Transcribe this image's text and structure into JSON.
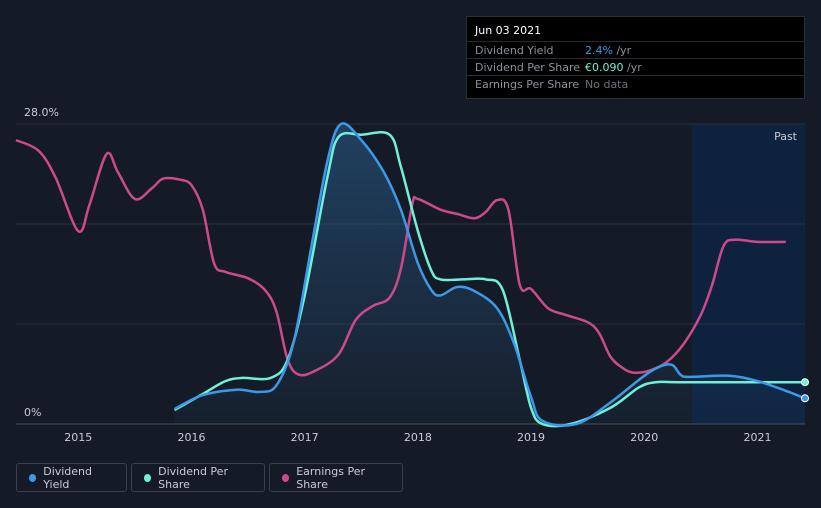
{
  "tooltip": {
    "date": "Jun 03 2021",
    "rows": [
      {
        "label": "Dividend Yield",
        "value": "2.4%",
        "unit": " /yr",
        "color": "#3b9ae8"
      },
      {
        "label": "Dividend Per Share",
        "value": "€0.090",
        "unit": " /yr",
        "color": "#6ff0d8"
      },
      {
        "label": "Earnings Per Share",
        "value": "No data",
        "unit": "",
        "color": "#6b7079"
      }
    ]
  },
  "past_label": "Past",
  "legend": [
    {
      "label": "Dividend Yield",
      "color": "#3b9ae8"
    },
    {
      "label": "Dividend Per Share",
      "color": "#6ff0d8"
    },
    {
      "label": "Earnings Per Share",
      "color": "#cc4a8c"
    }
  ],
  "chart_data": {
    "type": "line",
    "y_tick_labels": [
      "28.0%",
      "0%"
    ],
    "ylim": [
      0,
      28
    ],
    "xlim": [
      2014.45,
      2021.42
    ],
    "x_tick_labels": [
      "2015",
      "2016",
      "2017",
      "2018",
      "2019",
      "2020",
      "2021"
    ],
    "x_ticks": [
      2015,
      2016,
      2017,
      2018,
      2019,
      2020,
      2021
    ],
    "past_region_start": 2020.42,
    "grid": true,
    "series": [
      {
        "name": "Dividend Yield",
        "color": "#3b9ae8",
        "fill": true,
        "points": [
          [
            2015.85,
            1.4
          ],
          [
            2016.1,
            2.7
          ],
          [
            2016.4,
            3.2
          ],
          [
            2016.6,
            3.0
          ],
          [
            2016.75,
            3.6
          ],
          [
            2016.9,
            7.5
          ],
          [
            2017.05,
            16
          ],
          [
            2017.2,
            24.5
          ],
          [
            2017.32,
            28.0
          ],
          [
            2017.5,
            26.5
          ],
          [
            2017.7,
            23.5
          ],
          [
            2017.85,
            20
          ],
          [
            2018.0,
            15
          ],
          [
            2018.12,
            12.5
          ],
          [
            2018.2,
            12.0
          ],
          [
            2018.35,
            12.8
          ],
          [
            2018.5,
            12.4
          ],
          [
            2018.7,
            10.8
          ],
          [
            2018.85,
            7.5
          ],
          [
            2019.0,
            2.5
          ],
          [
            2019.1,
            0.3
          ],
          [
            2019.4,
            0
          ],
          [
            2019.7,
            2.0
          ],
          [
            2020.0,
            4.5
          ],
          [
            2020.15,
            5.4
          ],
          [
            2020.25,
            5.5
          ],
          [
            2020.32,
            4.6
          ],
          [
            2020.4,
            4.4
          ],
          [
            2020.75,
            4.5
          ],
          [
            2021.0,
            4.0
          ],
          [
            2021.25,
            3.1
          ],
          [
            2021.42,
            2.4
          ]
        ]
      },
      {
        "name": "Dividend Per Share",
        "color": "#6ff0d8",
        "fill": false,
        "points": [
          [
            2015.85,
            1.3
          ],
          [
            2016.1,
            2.8
          ],
          [
            2016.3,
            4.0
          ],
          [
            2016.45,
            4.3
          ],
          [
            2016.7,
            4.3
          ],
          [
            2016.85,
            6
          ],
          [
            2017.0,
            12
          ],
          [
            2017.2,
            23
          ],
          [
            2017.3,
            26.8
          ],
          [
            2017.5,
            27.0
          ],
          [
            2017.75,
            27.0
          ],
          [
            2017.85,
            24
          ],
          [
            2018.0,
            18
          ],
          [
            2018.12,
            14.3
          ],
          [
            2018.2,
            13.5
          ],
          [
            2018.4,
            13.5
          ],
          [
            2018.6,
            13.5
          ],
          [
            2018.75,
            12.5
          ],
          [
            2018.9,
            6
          ],
          [
            2019.0,
            1.5
          ],
          [
            2019.1,
            0
          ],
          [
            2019.35,
            0
          ],
          [
            2019.7,
            1.5
          ],
          [
            2019.95,
            3.4
          ],
          [
            2020.1,
            3.9
          ],
          [
            2020.3,
            3.9
          ],
          [
            2021.0,
            3.9
          ],
          [
            2021.42,
            3.9
          ]
        ]
      },
      {
        "name": "Earnings Per Share",
        "color": "#cc4a8c",
        "fill": false,
        "points": [
          [
            2014.45,
            26.5
          ],
          [
            2014.65,
            25.5
          ],
          [
            2014.8,
            23
          ],
          [
            2015.0,
            18
          ],
          [
            2015.1,
            20.5
          ],
          [
            2015.25,
            25.2
          ],
          [
            2015.35,
            23.5
          ],
          [
            2015.5,
            21.0
          ],
          [
            2015.65,
            22.0
          ],
          [
            2015.75,
            22.9
          ],
          [
            2015.9,
            22.8
          ],
          [
            2016.0,
            22.3
          ],
          [
            2016.1,
            20
          ],
          [
            2016.2,
            15.0
          ],
          [
            2016.3,
            14.2
          ],
          [
            2016.5,
            13.6
          ],
          [
            2016.65,
            12.5
          ],
          [
            2016.75,
            10.5
          ],
          [
            2016.85,
            6
          ],
          [
            2016.95,
            4.6
          ],
          [
            2017.1,
            5.0
          ],
          [
            2017.3,
            6.5
          ],
          [
            2017.45,
            9.7
          ],
          [
            2017.6,
            11.0
          ],
          [
            2017.75,
            11.8
          ],
          [
            2017.85,
            14.5
          ],
          [
            2017.95,
            20.5
          ],
          [
            2018.0,
            21.0
          ],
          [
            2018.2,
            20.0
          ],
          [
            2018.35,
            19.6
          ],
          [
            2018.5,
            19.2
          ],
          [
            2018.6,
            19.8
          ],
          [
            2018.7,
            20.9
          ],
          [
            2018.8,
            20.0
          ],
          [
            2018.9,
            13.0
          ],
          [
            2019.0,
            12.6
          ],
          [
            2019.15,
            10.8
          ],
          [
            2019.3,
            10.2
          ],
          [
            2019.5,
            9.5
          ],
          [
            2019.6,
            8.5
          ],
          [
            2019.7,
            6.3
          ],
          [
            2019.8,
            5.3
          ],
          [
            2019.9,
            4.8
          ],
          [
            2020.05,
            5.0
          ],
          [
            2020.2,
            5.8
          ],
          [
            2020.35,
            7.5
          ],
          [
            2020.5,
            10.2
          ],
          [
            2020.6,
            13.0
          ],
          [
            2020.7,
            16.6
          ],
          [
            2020.8,
            17.2
          ],
          [
            2021.0,
            17.0
          ],
          [
            2021.25,
            17.0
          ]
        ]
      }
    ]
  }
}
